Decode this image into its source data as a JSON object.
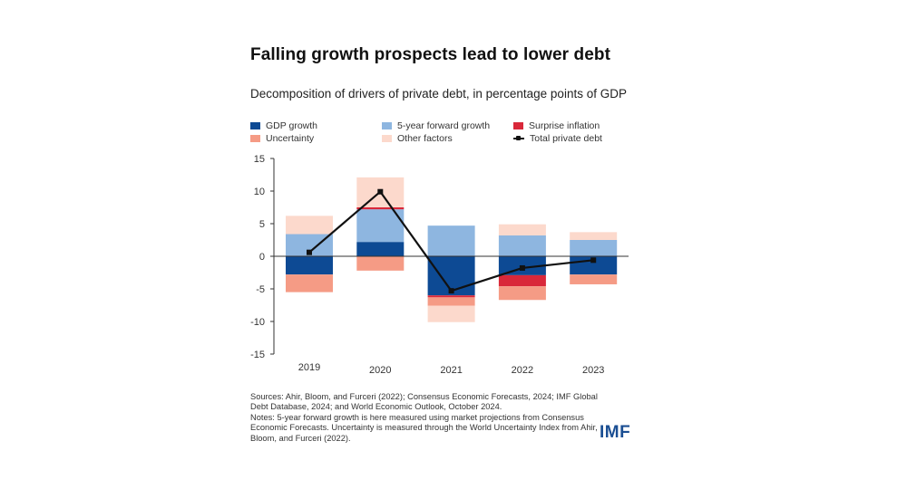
{
  "title": "Falling growth prospects lead to lower debt",
  "subtitle": "Decomposition of drivers of private debt, in percentage points of GDP",
  "legend": [
    {
      "label": "GDP growth",
      "color": "#0d4a94",
      "kind": "bar"
    },
    {
      "label": "5-year forward growth",
      "color": "#8eb6e0",
      "kind": "bar"
    },
    {
      "label": "Surprise inflation",
      "color": "#d9283a",
      "kind": "bar"
    },
    {
      "label": "Uncertainty",
      "color": "#f59b85",
      "kind": "bar"
    },
    {
      "label": "Other factors",
      "color": "#fcd9cc",
      "kind": "bar"
    },
    {
      "label": "Total private debt",
      "color": "#111111",
      "kind": "line"
    }
  ],
  "chart_data": {
    "type": "bar",
    "stacked": true,
    "title": "Falling growth prospects lead to lower debt",
    "subtitle": "Decomposition of drivers of private debt, in percentage points of GDP",
    "xlabel": "",
    "ylabel": "",
    "categories": [
      "2019",
      "2020",
      "2021",
      "2022",
      "2023"
    ],
    "ylim": [
      -15,
      15
    ],
    "yticks": [
      15,
      10,
      5,
      0,
      -5,
      -10,
      -15
    ],
    "grid": false,
    "legend_position": "top",
    "series": [
      {
        "name": "GDP growth",
        "color": "#0d4a94",
        "values": [
          -2.8,
          2.2,
          -6.0,
          -2.9,
          -2.8
        ]
      },
      {
        "name": "5-year forward growth",
        "color": "#8eb6e0",
        "values": [
          3.4,
          5.0,
          4.7,
          3.2,
          2.5
        ]
      },
      {
        "name": "Surprise inflation",
        "color": "#d9283a",
        "values": [
          0.0,
          0.3,
          -0.3,
          -1.7,
          0.0
        ]
      },
      {
        "name": "Uncertainty",
        "color": "#f59b85",
        "values": [
          -2.7,
          -2.2,
          -1.3,
          -2.1,
          -1.5
        ]
      },
      {
        "name": "Other factors",
        "color": "#fcd9cc",
        "values": [
          2.8,
          4.6,
          -2.5,
          1.7,
          1.2
        ]
      }
    ],
    "line": {
      "name": "Total private debt",
      "color": "#111111",
      "values": [
        0.6,
        9.9,
        -5.3,
        -1.8,
        -0.6
      ]
    }
  },
  "notes": {
    "sources": "Sources: Ahir, Bloom, and Furceri (2022); Consensus Economic Forecasts, 2024; IMF Global Debt Database, 2024; and World Economic Outlook, October 2024.",
    "notes": "Notes: 5-year forward growth is here measured using market projections from Consensus Economic Forecasts. Uncertainty is measured through the World Uncertainty Index from Ahir, Bloom, and Furceri (2022)."
  },
  "logo": "IMF"
}
